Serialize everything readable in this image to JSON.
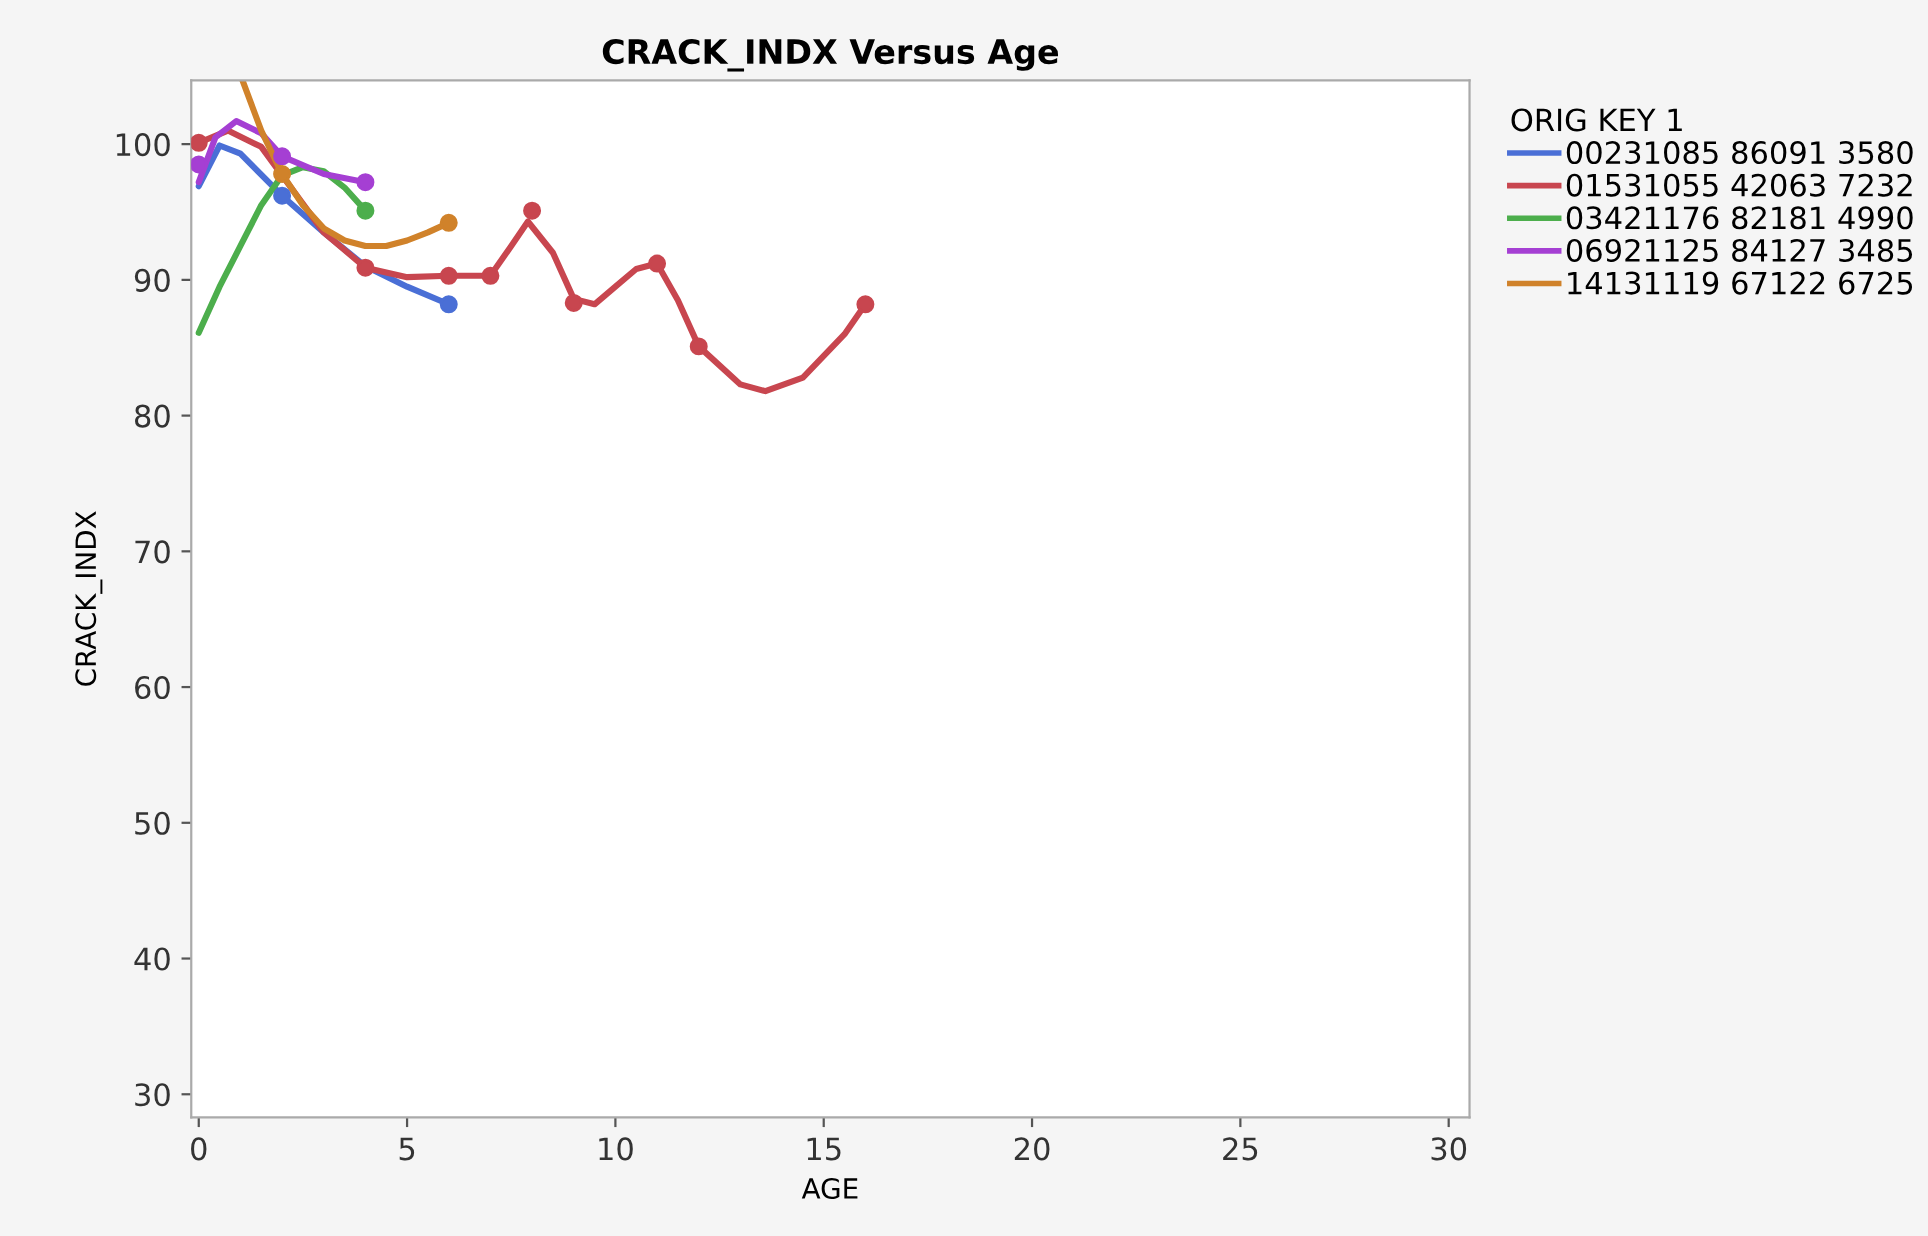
{
  "chart_data": {
    "type": "line",
    "title": "CRACK_INDX Versus Age",
    "xlabel": "AGE",
    "ylabel": "CRACK_INDX",
    "legend_title": "ORIG KEY 1",
    "legend": "right",
    "grid": false,
    "marker": "none",
    "line_style": "solid",
    "xlim": [
      -0.18,
      30.5
    ],
    "xticks": [
      0,
      5,
      10,
      15,
      20,
      25,
      30
    ],
    "ylim": [
      28.3,
      104.7
    ],
    "yticks": [
      30,
      40,
      50,
      60,
      70,
      80,
      90,
      100
    ],
    "series": [
      {
        "name": "00231085 86091 3580",
        "color": "#4a6fd6",
        "x": [
          0,
          0.5,
          1,
          2,
          3,
          4,
          5,
          6
        ],
        "values": [
          96.9,
          99.9,
          99.3,
          96.2,
          93.5,
          91.0,
          89.5,
          88.2
        ]
      },
      {
        "name": "01531055 42063 7232",
        "color": "#c8464f",
        "x": [
          0,
          0.7,
          1.5,
          2,
          3,
          4,
          5,
          6,
          7,
          7.5,
          7.9,
          8.5,
          9,
          9.5,
          10,
          10.5,
          11,
          11.5,
          12,
          13,
          13.6,
          14.5,
          15.5,
          16
        ],
        "values": [
          100.1,
          101.0,
          99.8,
          97.7,
          93.5,
          90.9,
          90.2,
          90.3,
          90.3,
          92.5,
          94.3,
          92.0,
          88.6,
          88.2,
          89.5,
          90.8,
          91.2,
          88.5,
          85.1,
          82.3,
          81.8,
          82.8,
          86.0,
          88.2
        ]
      },
      {
        "name": "03421176 82181 4990",
        "color": "#4cae4c",
        "x": [
          0,
          0.5,
          1,
          1.5,
          2,
          2.5,
          3,
          3.5,
          4
        ],
        "values": [
          86.1,
          89.5,
          92.5,
          95.5,
          97.7,
          98.3,
          98.0,
          96.8,
          95.1
        ]
      },
      {
        "name": "06921125 84127 3485",
        "color": "#a53fd3",
        "x": [
          0,
          0.4,
          0.9,
          1.5,
          2,
          3,
          4
        ],
        "values": [
          97.2,
          100.5,
          101.7,
          100.8,
          99.1,
          97.8,
          97.2
        ]
      },
      {
        "name": "14131119 67122 6725",
        "color": "#d0822a",
        "x": [
          1.05,
          1.5,
          2,
          2.5,
          3,
          3.5,
          4,
          4.5,
          5,
          5.5,
          6
        ],
        "values": [
          104.7,
          101.0,
          97.8,
          95.5,
          93.8,
          92.9,
          92.5,
          92.5,
          92.9,
          93.5,
          94.2
        ]
      },
      {
        "type": "scatter",
        "marker": "circle",
        "color": "#4a6fd6",
        "x": [
          2,
          6
        ],
        "values": [
          96.2,
          88.2
        ]
      },
      {
        "type": "scatter",
        "marker": "circle",
        "color": "#c8464f",
        "x": [
          0,
          4,
          6,
          7,
          8,
          9,
          11,
          12,
          16
        ],
        "values": [
          100.1,
          90.9,
          90.3,
          90.3,
          95.1,
          88.3,
          91.2,
          85.1,
          88.2
        ]
      },
      {
        "type": "scatter",
        "marker": "circle",
        "color": "#4cae4c",
        "x": [
          4
        ],
        "values": [
          95.1
        ]
      },
      {
        "type": "scatter",
        "marker": "circle",
        "color": "#a53fd3",
        "x": [
          0,
          2,
          4
        ],
        "values": [
          98.5,
          99.1,
          97.2
        ]
      },
      {
        "type": "scatter",
        "marker": "circle",
        "color": "#d0822a",
        "x": [
          2,
          6
        ],
        "values": [
          97.8,
          94.2
        ]
      }
    ]
  }
}
